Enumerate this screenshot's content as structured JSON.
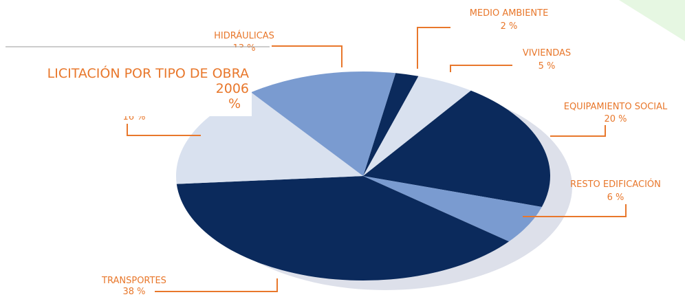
{
  "chart_data": {
    "type": "pie",
    "title": [
      "LICITACIÓN POR TIPO DE OBRA",
      "2006",
      "%"
    ],
    "categories": [
      "MEDIO AMBIENTE",
      "VIVIENDAS",
      "EQUIPAMIENTO SOCIAL",
      "RESTO EDIFICACIÓN",
      "TRANSPORTES",
      null,
      "HIDRÁULICAS"
    ],
    "values": [
      2,
      5,
      20,
      6,
      38,
      16,
      13
    ],
    "value_labels": [
      "2 %",
      "5 %",
      "20 %",
      "6 %",
      "38 %",
      "16 %",
      "13 %"
    ],
    "colors": [
      "#0b2a5c",
      "#d9e1ef",
      "#0b2a5c",
      "#7a9bd0",
      "#0b2a5c",
      "#d9e1ef",
      "#7a9bd0"
    ]
  }
}
